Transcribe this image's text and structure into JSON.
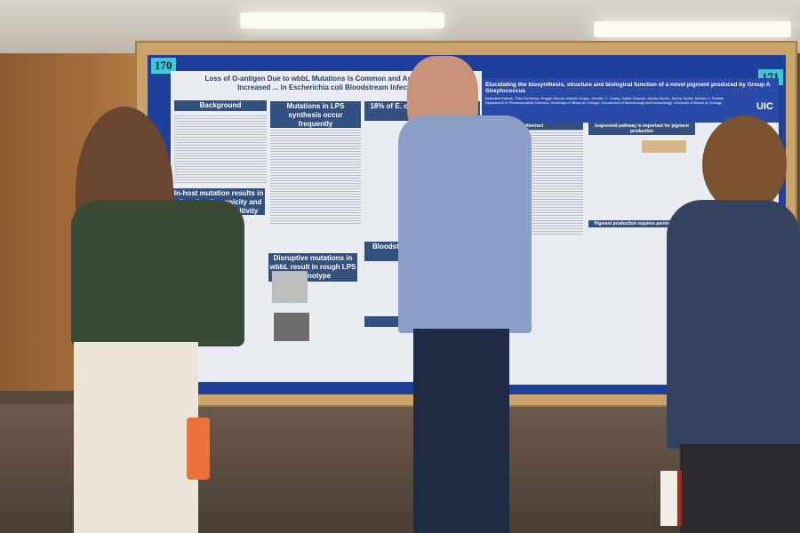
{
  "board": {
    "left_number": "170",
    "right_number": "171"
  },
  "poster_left": {
    "title": "Loss of O-antigen Due to wbbL Mutations Is Common and Associated with Increased ... in Escherichia coli Bloodstream Infections",
    "sections": [
      "Background",
      "Mutations in LPS synthesis occur frequently",
      "18% of E. coli bloodstream is...",
      "In-host mutation results in altered pathogenicity and complement sensitivity",
      "Disruptive mutations in wbbL result in rough LPS phenotype",
      "Bloodstream mutant is worse",
      "Conclusions"
    ],
    "bar_colors": [
      "#3aa858",
      "#2f52b8",
      "#e0452e",
      "#e8903a"
    ]
  },
  "poster_right": {
    "title": "Elucidating the biosynthesis, structure and biological function of a novel pigment produced by Group A Streptococcus",
    "authors": "Baishakhi Pathak, Theo DeVinney, Reggie Woods, Artemis Gogos, Jennifer C. Chang, Isabel Chauvin, Aishaq Kiuntu, Jimmy Orpilla, Michael J. Federle",
    "affiliation": "Department of Pharmaceutical Sciences, University of Illinois at Chicago; Department of Microbiology and Immunology, University of Illinois at Chicago",
    "logo": "UIC",
    "sections": [
      "Abstract",
      "Isoprenoid pathway is important for pigment production",
      "Pigment production requires purine biosynthesis"
    ]
  }
}
